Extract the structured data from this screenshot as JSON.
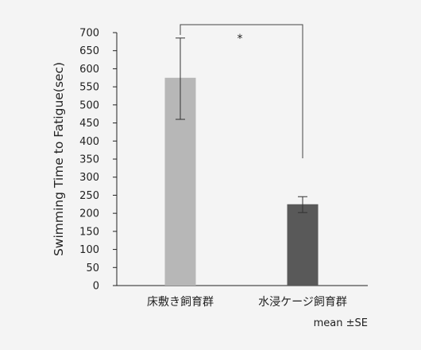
{
  "chart_data": {
    "type": "bar",
    "categories": [
      "床敷き飼育群",
      "水浸ケージ飼育群"
    ],
    "values": [
      575,
      225
    ],
    "error_low": [
      460,
      202
    ],
    "error_high": [
      685,
      246
    ],
    "bar_colors": [
      "#b7b7b7",
      "#595959"
    ],
    "ylabel": "Swimming Time to Fatigue(sec)",
    "xlabel": "",
    "ylim": [
      0,
      700
    ],
    "yticks": [
      0,
      50,
      100,
      150,
      200,
      250,
      300,
      350,
      400,
      450,
      500,
      550,
      600,
      650,
      700
    ],
    "significance": {
      "between": [
        0,
        1
      ],
      "marker": "*"
    },
    "note": "mean ±SE",
    "grid": false
  }
}
